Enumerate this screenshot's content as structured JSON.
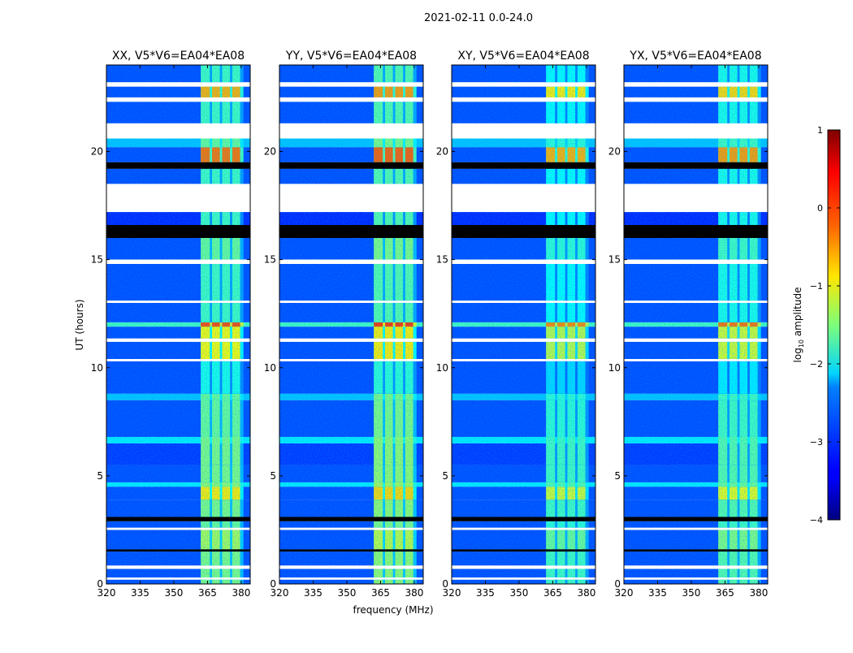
{
  "chart_data": {
    "type": "heatmap",
    "title": "2021-02-11 0.0-24.0",
    "xlabel": "frequency (MHz)",
    "ylabel": "UT (hours)",
    "xlim": [
      320,
      384
    ],
    "ylim": [
      0,
      24
    ],
    "xticks": [
      320,
      335,
      350,
      365,
      380
    ],
    "yticks": [
      0,
      5,
      10,
      15,
      20
    ],
    "colorbar": {
      "label_prefix": "log",
      "label_sub": "10",
      "label_suffix": " amplitude",
      "range": [
        -4,
        1
      ],
      "ticks": [
        1,
        0,
        -1,
        -2,
        -3,
        -4
      ],
      "colormap": "jet"
    },
    "rfi_channels_mhz": [
      [
        362,
        366
      ],
      [
        367,
        370.5
      ],
      [
        371.5,
        375
      ],
      [
        376,
        379.5
      ]
    ],
    "panels": [
      {
        "title": "XX, V5*V6=EA04*EA08",
        "rfi_offset": 0
      },
      {
        "title": "YY, V5*V6=EA04*EA08",
        "rfi_offset": 0.1
      },
      {
        "title": "XY, V5*V6=EA04*EA08",
        "rfi_offset": -0.3
      },
      {
        "title": "YX, V5*V6=EA04*EA08",
        "rfi_offset": -0.2
      }
    ],
    "time_bands": [
      {
        "t": [
          0,
          0.2
        ],
        "kind": "data",
        "bg": -3,
        "rfi": -1.5
      },
      {
        "t": [
          0.2,
          0.3
        ],
        "kind": "flagged"
      },
      {
        "t": [
          0.3,
          0.7
        ],
        "kind": "data",
        "bg": -3,
        "rfi": -1.5
      },
      {
        "t": [
          0.7,
          0.85
        ],
        "kind": "flagged"
      },
      {
        "t": [
          0.85,
          1.5
        ],
        "kind": "data",
        "bg": -3,
        "rfi": -1.5
      },
      {
        "t": [
          1.5,
          1.6
        ],
        "kind": "zero"
      },
      {
        "t": [
          1.6,
          2.5
        ],
        "kind": "data",
        "bg": -3,
        "rfi": -1.3
      },
      {
        "t": [
          2.5,
          2.6
        ],
        "kind": "flagged"
      },
      {
        "t": [
          2.6,
          2.9
        ],
        "kind": "data",
        "bg": -3,
        "rfi": -1.6
      },
      {
        "t": [
          2.9,
          3.1
        ],
        "kind": "zero"
      },
      {
        "t": [
          3.1,
          3.9
        ],
        "kind": "data",
        "bg": -3,
        "rfi": -1.5
      },
      {
        "t": [
          3.9,
          4.5
        ],
        "kind": "data",
        "bg": -3,
        "rfi": -0.8
      },
      {
        "t": [
          4.5,
          4.7
        ],
        "kind": "data",
        "bg": -2.2,
        "rfi": -1.4
      },
      {
        "t": [
          4.7,
          5.5
        ],
        "kind": "data",
        "bg": -3,
        "rfi": -1.5
      },
      {
        "t": [
          5.5,
          6.5
        ],
        "kind": "data",
        "bg": -3.1,
        "rfi": -1.5
      },
      {
        "t": [
          6.5,
          6.8
        ],
        "kind": "data",
        "bg": -2.2,
        "rfi": -1.5
      },
      {
        "t": [
          6.8,
          8.5
        ],
        "kind": "data",
        "bg": -3,
        "rfi": -1.6
      },
      {
        "t": [
          8.5,
          8.8
        ],
        "kind": "data",
        "bg": -2.4,
        "rfi": -1.6
      },
      {
        "t": [
          8.8,
          10.3
        ],
        "kind": "data",
        "bg": -3,
        "rfi": -2
      },
      {
        "t": [
          10.3,
          10.4
        ],
        "kind": "flagged"
      },
      {
        "t": [
          10.4,
          11.2
        ],
        "kind": "data",
        "bg": -3,
        "rfi": -0.9
      },
      {
        "t": [
          11.2,
          11.35
        ],
        "kind": "flagged"
      },
      {
        "t": [
          11.35,
          11.9
        ],
        "kind": "data",
        "bg": -3,
        "rfi": -0.9
      },
      {
        "t": [
          11.9,
          12.1
        ],
        "kind": "data",
        "bg": -1.8,
        "rfi": 0
      },
      {
        "t": [
          12.1,
          13.0
        ],
        "kind": "data",
        "bg": -3,
        "rfi": -1.8
      },
      {
        "t": [
          13.0,
          13.1
        ],
        "kind": "flagged"
      },
      {
        "t": [
          13.1,
          14.8
        ],
        "kind": "data",
        "bg": -3,
        "rfi": -1.8
      },
      {
        "t": [
          14.8,
          15.0
        ],
        "kind": "flagged"
      },
      {
        "t": [
          15.0,
          16.0
        ],
        "kind": "data",
        "bg": -3,
        "rfi": -1.6
      },
      {
        "t": [
          16.0,
          16.6
        ],
        "kind": "zero"
      },
      {
        "t": [
          16.6,
          17.2
        ],
        "kind": "data",
        "bg": -3.2,
        "rfi": -1.8
      },
      {
        "t": [
          17.2,
          18.5
        ],
        "kind": "flagged"
      },
      {
        "t": [
          18.5,
          19.2
        ],
        "kind": "data",
        "bg": -3,
        "rfi": -1.8
      },
      {
        "t": [
          19.2,
          19.5
        ],
        "kind": "zero"
      },
      {
        "t": [
          19.5,
          20.2
        ],
        "kind": "data",
        "bg": -3,
        "rfi": -0.2
      },
      {
        "t": [
          20.2,
          20.6
        ],
        "kind": "data",
        "bg": -2.4,
        "rfi": -1.6
      },
      {
        "t": [
          20.6,
          21.3
        ],
        "kind": "flagged"
      },
      {
        "t": [
          21.3,
          22.3
        ],
        "kind": "data",
        "bg": -3,
        "rfi": -1.8
      },
      {
        "t": [
          22.3,
          22.5
        ],
        "kind": "flagged"
      },
      {
        "t": [
          22.5,
          23.0
        ],
        "kind": "data",
        "bg": -3,
        "rfi": -0.5
      },
      {
        "t": [
          23.0,
          23.2
        ],
        "kind": "flagged"
      },
      {
        "t": [
          23.2,
          24
        ],
        "kind": "data",
        "bg": -3,
        "rfi": -1.8
      }
    ]
  }
}
